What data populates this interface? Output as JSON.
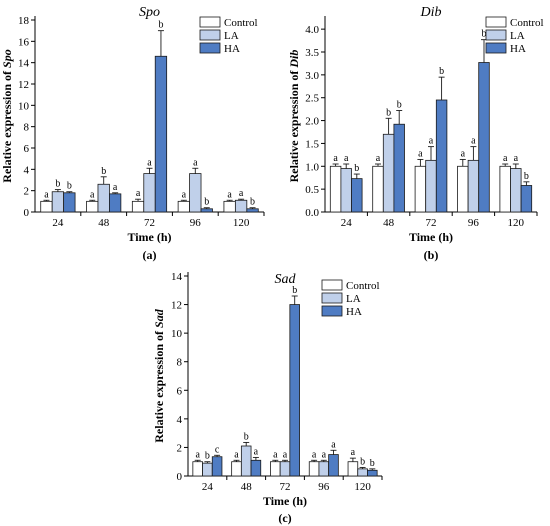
{
  "legend": [
    "Control",
    "LA",
    "HA"
  ],
  "colors": {
    "Control": "#ffffff",
    "LA": "#c0d0ea",
    "HA": "#4f7cc3",
    "outline": "#1a1a1a"
  },
  "chart_data": [
    {
      "type": "bar",
      "title": "Spo",
      "panel_label": "(a)",
      "xlabel": "Time (h)",
      "ylabel_prefix": "Relative expression of ",
      "ylabel_gene": "Spo",
      "categories": [
        "24",
        "48",
        "72",
        "96",
        "120"
      ],
      "ylim": [
        0,
        18
      ],
      "yticks": [
        0,
        2,
        4,
        6,
        8,
        10,
        12,
        14,
        16,
        18
      ],
      "legend_position": "top-right",
      "series": [
        {
          "name": "Control",
          "values": [
            1.0,
            1.0,
            1.0,
            1.0,
            1.0
          ],
          "errors": [
            0.1,
            0.1,
            0.2,
            0.1,
            0.1
          ],
          "labels": [
            "a",
            "a",
            "a",
            "a",
            "a"
          ]
        },
        {
          "name": "LA",
          "values": [
            1.9,
            2.6,
            3.6,
            3.6,
            1.1
          ],
          "errors": [
            0.2,
            0.7,
            0.5,
            0.5,
            0.1
          ],
          "labels": [
            "b",
            "b",
            "a",
            "a",
            "a"
          ]
        },
        {
          "name": "HA",
          "values": [
            1.8,
            1.7,
            14.6,
            0.3,
            0.3
          ],
          "errors": [
            0.1,
            0.1,
            2.4,
            0.1,
            0.1
          ],
          "labels": [
            "b",
            "a",
            "b",
            "b",
            "b"
          ]
        }
      ]
    },
    {
      "type": "bar",
      "title": "Dib",
      "panel_label": "(b)",
      "xlabel": "Time (h)",
      "ylabel_prefix": "Relative expression of ",
      "ylabel_gene": "Dib",
      "categories": [
        "24",
        "48",
        "72",
        "96",
        "120"
      ],
      "ylim": [
        0,
        4.2
      ],
      "yticks": [
        0,
        0.5,
        1.0,
        1.5,
        2.0,
        2.5,
        3.0,
        3.5,
        4.0
      ],
      "legend_position": "top-right",
      "series": [
        {
          "name": "Control",
          "values": [
            1.0,
            1.0,
            1.0,
            1.0,
            1.0
          ],
          "errors": [
            0.05,
            0.05,
            0.15,
            0.15,
            0.05
          ],
          "labels": [
            "a",
            "a",
            "a",
            "a",
            "a"
          ]
        },
        {
          "name": "LA",
          "values": [
            0.95,
            1.7,
            1.13,
            1.13,
            0.95
          ],
          "errors": [
            0.1,
            0.35,
            0.3,
            0.3,
            0.1
          ],
          "labels": [
            "a",
            "b",
            "a",
            "a",
            "a"
          ]
        },
        {
          "name": "HA",
          "values": [
            0.73,
            1.92,
            2.45,
            3.27,
            0.58
          ],
          "errors": [
            0.1,
            0.3,
            0.5,
            0.5,
            0.08
          ],
          "labels": [
            "b",
            "b",
            "b",
            "b",
            "b"
          ]
        }
      ]
    },
    {
      "type": "bar",
      "title": "Sad",
      "panel_label": "(c)",
      "xlabel": "Time (h)",
      "ylabel_prefix": "Relative expression of ",
      "ylabel_gene": "Sad",
      "categories": [
        "24",
        "48",
        "72",
        "96",
        "120"
      ],
      "ylim": [
        0,
        14
      ],
      "yticks": [
        0,
        2,
        4,
        6,
        8,
        10,
        12,
        14
      ],
      "legend_position": "top-right",
      "series": [
        {
          "name": "Control",
          "values": [
            1.0,
            1.0,
            1.0,
            1.0,
            1.0
          ],
          "errors": [
            0.1,
            0.1,
            0.1,
            0.1,
            0.25
          ],
          "labels": [
            "a",
            "a",
            "a",
            "a",
            "a"
          ]
        },
        {
          "name": "LA",
          "values": [
            0.9,
            2.1,
            1.0,
            1.0,
            0.5
          ],
          "errors": [
            0.1,
            0.25,
            0.1,
            0.1,
            0.1
          ],
          "labels": [
            "b",
            "b",
            "a",
            "a",
            "b"
          ]
        },
        {
          "name": "HA",
          "values": [
            1.35,
            1.1,
            12.0,
            1.5,
            0.4
          ],
          "errors": [
            0.1,
            0.2,
            0.6,
            0.3,
            0.1
          ],
          "labels": [
            "c",
            "a",
            "b",
            "a",
            "b"
          ]
        }
      ]
    }
  ]
}
